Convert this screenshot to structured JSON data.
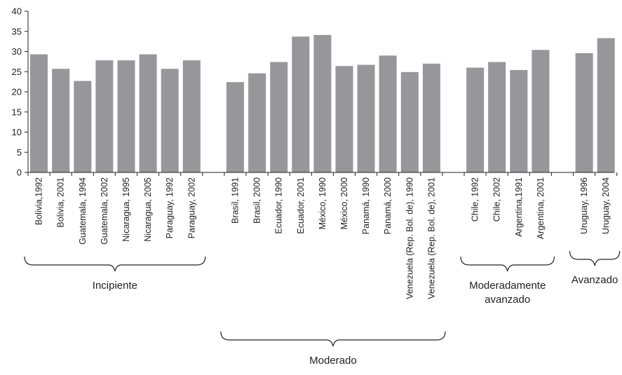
{
  "chart_data": {
    "type": "bar",
    "ylim": [
      0,
      40
    ],
    "yticks": [
      "0",
      "5",
      "10",
      "15",
      "20",
      "25",
      "30",
      "35",
      "40"
    ],
    "grid": false,
    "bar_color": "#96969b",
    "groups": [
      {
        "label": "Incipiente",
        "label_lines": [
          "Incipiente"
        ],
        "categories": [
          "Bolivia,1992",
          "Bolivia, 2001",
          "Guatemala, 1994",
          "Guatemala, 2002",
          "Nicaragua, 1995",
          "Nicaragua, 2005",
          "Paraguay, 1992",
          "Paraguay, 2002"
        ],
        "values": [
          29.3,
          25.7,
          22.7,
          27.8,
          27.8,
          29.3,
          25.7,
          27.8
        ]
      },
      {
        "label": "Moderado",
        "label_lines": [
          "Moderado"
        ],
        "categories": [
          "Brasil, 1991",
          "Brasil, 2000",
          "Ecuador, 1990",
          "Ecuador, 2001",
          "México, 1990",
          "México, 2000",
          "Panamá, 1990",
          "Panamá, 2000",
          "Venezuela (Rep. Bol. de), 1990",
          "Venezuela (Rep. Bol. de), 2001"
        ],
        "values": [
          22.4,
          24.6,
          27.4,
          33.7,
          34.1,
          26.4,
          26.7,
          29.0,
          24.9,
          27.0
        ]
      },
      {
        "label": "Moderadamente avanzado",
        "label_lines": [
          "Moderadamente",
          "avanzado"
        ],
        "categories": [
          "Chile, 1992",
          "Chile, 2002",
          "Argentina,1991",
          "Argentina, 2001"
        ],
        "values": [
          26.0,
          27.4,
          25.4,
          30.4
        ]
      },
      {
        "label": "Avanzado",
        "label_lines": [
          "Avanzado"
        ],
        "categories": [
          "Uruguay, 1996",
          "Uruguay, 2004"
        ],
        "values": [
          29.6,
          33.3
        ]
      }
    ]
  }
}
